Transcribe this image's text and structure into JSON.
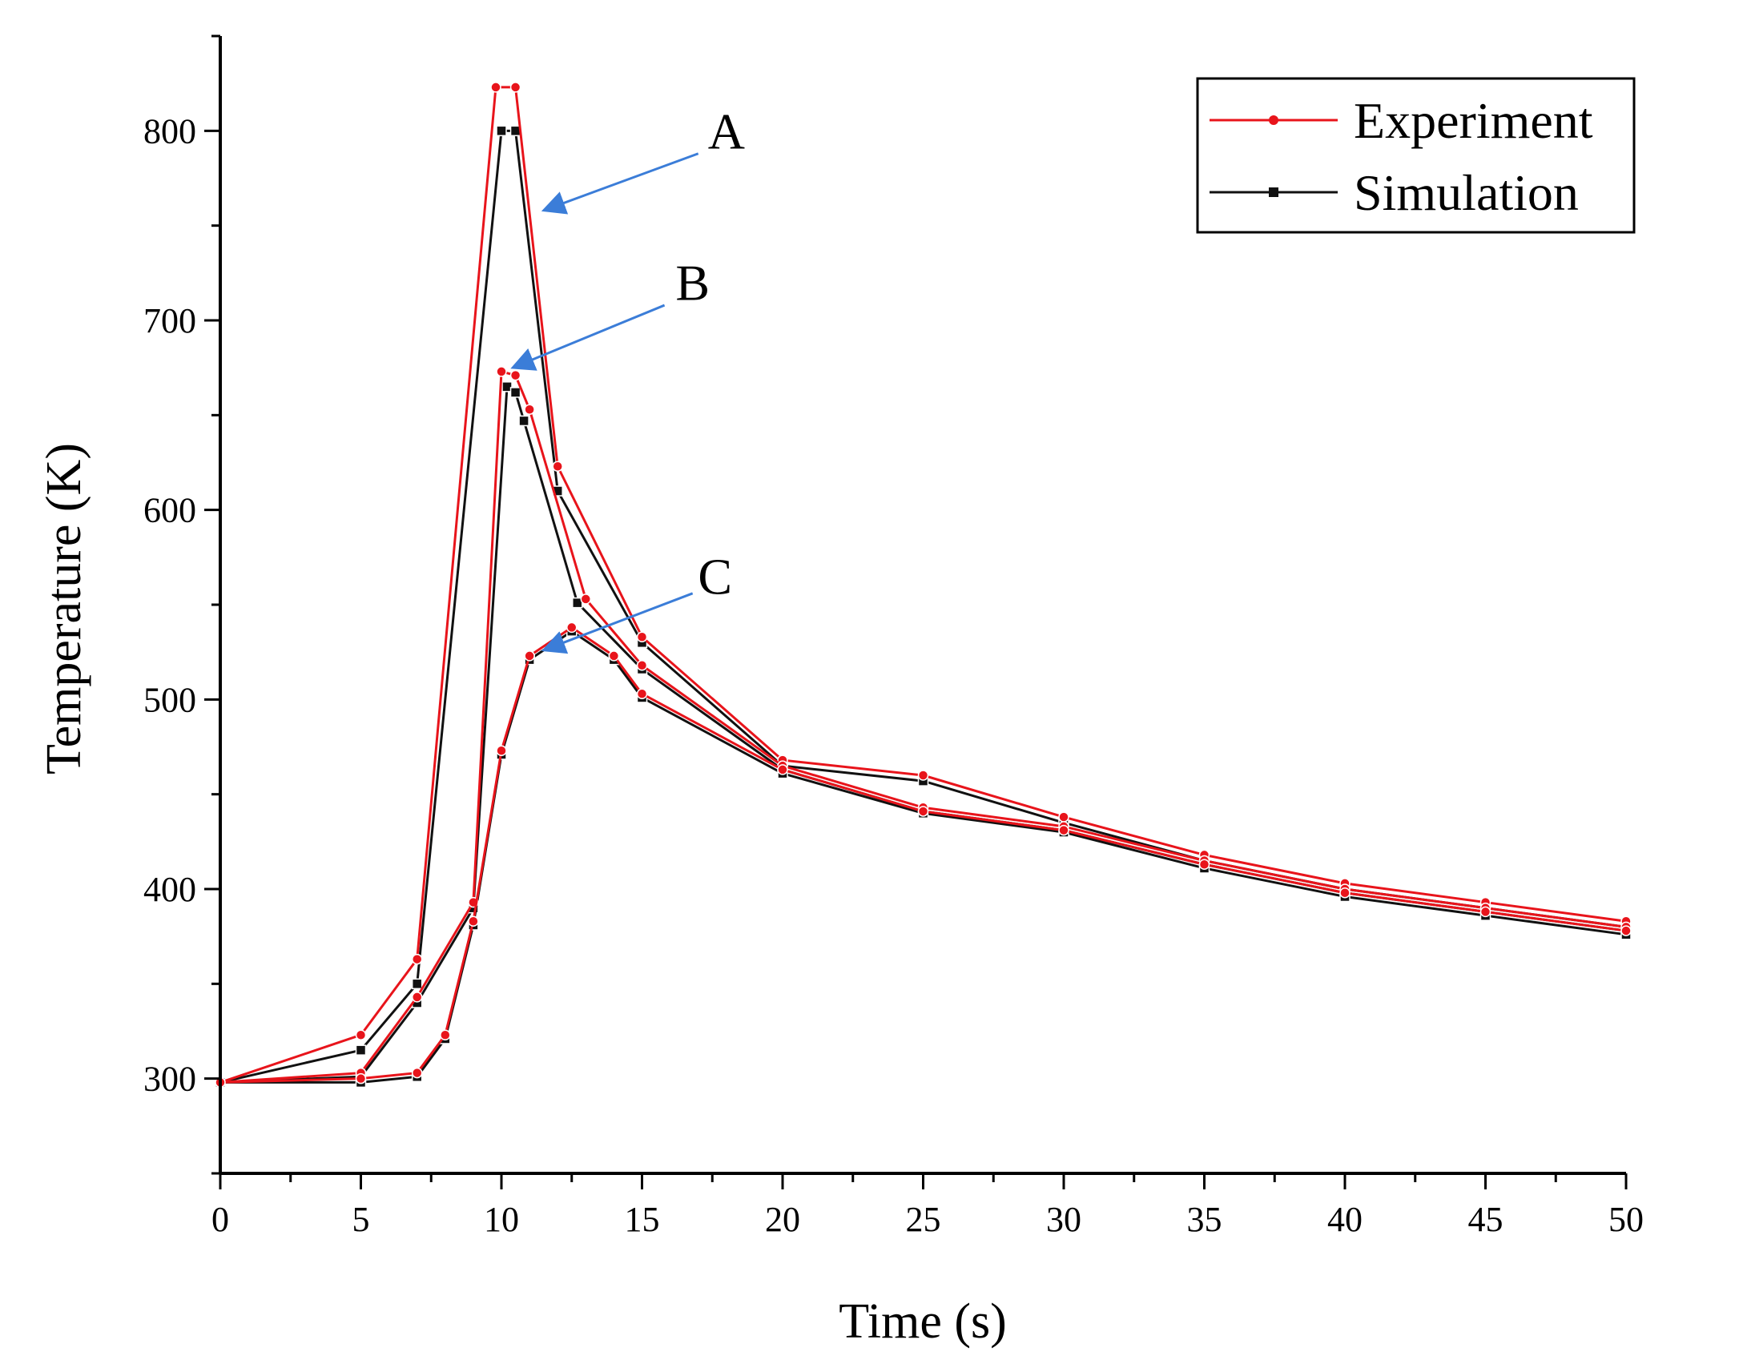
{
  "chart_data": {
    "type": "line",
    "title": "",
    "xlabel": "Time (s)",
    "ylabel": "Temperature (K)",
    "xlim": [
      0,
      50
    ],
    "ylim": [
      250,
      850
    ],
    "xticks": [
      0,
      5,
      10,
      15,
      20,
      25,
      30,
      35,
      40,
      45,
      50
    ],
    "yticks": [
      300,
      400,
      500,
      600,
      700,
      800
    ],
    "grid": false,
    "legend_position": "top-right",
    "colors": {
      "Experiment": "#e8141b",
      "Simulation": "#111111",
      "annotation_arrow": "#3b7dd8"
    },
    "legend": [
      "Experiment",
      "Simulation"
    ],
    "series": [
      {
        "name": "Experiment",
        "group": "A",
        "x": [
          0,
          5,
          7,
          9.8,
          10.5,
          12,
          15,
          20,
          25,
          30,
          35,
          40,
          45,
          50
        ],
        "y": [
          298,
          323,
          363,
          823,
          823,
          623,
          533,
          468,
          460,
          438,
          418,
          403,
          393,
          383
        ]
      },
      {
        "name": "Simulation",
        "group": "A",
        "x": [
          0,
          5,
          7,
          10,
          10.5,
          12,
          15,
          20,
          25,
          30,
          35,
          40,
          45,
          50
        ],
        "y": [
          298,
          315,
          350,
          800,
          800,
          610,
          530,
          465,
          457,
          435,
          415,
          400,
          390,
          380
        ]
      },
      {
        "name": "Experiment",
        "group": "B",
        "x": [
          0,
          5,
          7,
          9,
          10,
          10.5,
          11,
          13,
          15,
          20,
          25,
          30,
          35,
          40,
          45,
          50
        ],
        "y": [
          298,
          303,
          343,
          393,
          673,
          671,
          653,
          553,
          518,
          465,
          443,
          433,
          415,
          400,
          390,
          380
        ]
      },
      {
        "name": "Simulation",
        "group": "B",
        "x": [
          0,
          5,
          7,
          9,
          10.2,
          10.5,
          10.8,
          12.7,
          15,
          20,
          25,
          30,
          35,
          40,
          45,
          50
        ],
        "y": [
          298,
          301,
          340,
          390,
          665,
          662,
          647,
          551,
          516,
          463,
          441,
          431,
          413,
          398,
          388,
          378
        ]
      },
      {
        "name": "Experiment",
        "group": "C",
        "x": [
          0,
          5,
          7,
          8,
          9,
          10,
          11,
          12.5,
          14,
          15,
          20,
          25,
          30,
          35,
          40,
          45,
          50
        ],
        "y": [
          298,
          300,
          303,
          323,
          383,
          473,
          523,
          538,
          523,
          503,
          463,
          441,
          431,
          413,
          398,
          388,
          378
        ]
      },
      {
        "name": "Simulation",
        "group": "C",
        "x": [
          0,
          5,
          7,
          8,
          9,
          10,
          11,
          12.5,
          14,
          15,
          20,
          25,
          30,
          35,
          40,
          45,
          50
        ],
        "y": [
          298,
          298,
          301,
          321,
          381,
          471,
          521,
          536,
          521,
          501,
          461,
          440,
          430,
          411,
          396,
          386,
          376
        ]
      }
    ],
    "annotations": [
      {
        "label": "A",
        "text_x": 18,
        "text_y": 800,
        "arrow_from": [
          17,
          788
        ],
        "arrow_to": [
          11.5,
          758
        ]
      },
      {
        "label": "B",
        "text_x": 16.8,
        "text_y": 720,
        "arrow_from": [
          15.8,
          708
        ],
        "arrow_to": [
          10.4,
          675
        ]
      },
      {
        "label": "C",
        "text_x": 17.6,
        "text_y": 565,
        "arrow_from": [
          16.8,
          556
        ],
        "arrow_to": [
          11.5,
          526
        ]
      }
    ]
  }
}
